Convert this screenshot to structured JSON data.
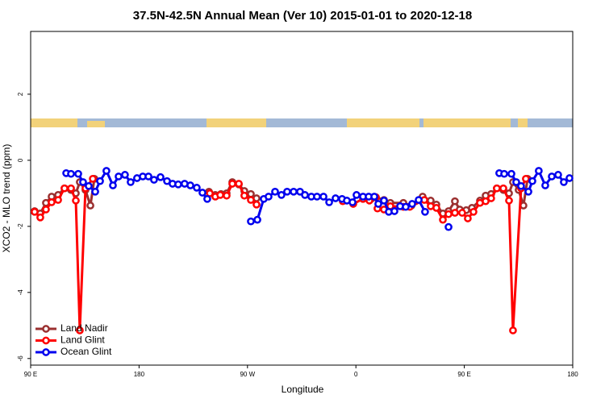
{
  "chart_data": {
    "type": "line",
    "title": "37.5N-42.5N Annual Mean (Ver 10)   2015-01-01 to 2020-12-18",
    "x_label": "Longitude",
    "y_label": "XCO2 - MLO trend (ppm)",
    "xlim": [
      -270,
      180
    ],
    "ylim": [
      -6.2,
      3.9
    ],
    "xticks": [
      {
        "value": -270,
        "label": "90 E"
      },
      {
        "value": -180,
        "label": "180"
      },
      {
        "value": -90,
        "label": "90 W"
      },
      0,
      {
        "value": 90,
        "label": "90 E"
      },
      {
        "value": 180,
        "label": "180"
      }
    ],
    "yticks": [
      -6,
      -4,
      -2,
      0,
      2
    ],
    "legend": "lower left",
    "series": [
      {
        "name": "Land Nadir",
        "color": "#9b3030",
        "x": [
          -266.7,
          -262.0,
          -257.3,
          -252.6,
          -247.2,
          -241.9,
          -236.5,
          -232.5,
          -229.2,
          -224.5,
          -220.4,
          -217.1,
          null,
          -122.0,
          -116.7,
          -112.0,
          -107.3,
          -102.6,
          -97.2,
          -92.6,
          -87.2,
          -82.5,
          null,
          12.6,
          16.6,
          23.3,
          28.6,
          39.4,
          46.1,
          55.4,
          62.1,
          66.8,
          72.2,
          76.9,
          82.2,
          86.2,
          91.6,
          96.3,
          103.0,
          107.7,
          112.3,
          117.0,
          122.4,
          127.1,
          130.4,
          135.1,
          139.1,
          142.5
        ],
        "values": [
          -1.54,
          -1.61,
          -1.29,
          -1.1,
          -1.05,
          -0.85,
          -0.9,
          -1.0,
          -0.66,
          -0.9,
          -1.37,
          -0.56,
          null,
          -0.95,
          -1.05,
          -1.02,
          -1.0,
          -0.66,
          -0.73,
          -0.93,
          -1.02,
          -1.15,
          null,
          -1.17,
          -1.12,
          -1.2,
          -1.29,
          -1.29,
          -1.37,
          -1.1,
          -1.22,
          -1.34,
          -1.61,
          -1.54,
          -1.24,
          -1.49,
          -1.51,
          -1.44,
          -1.22,
          -1.07,
          -1.02,
          -0.85,
          -0.9,
          -1.0,
          -0.66,
          -0.9,
          -1.37,
          -0.56
        ]
      },
      {
        "name": "Land Glint",
        "color": "#ff0000",
        "x": [
          -266.7,
          -262.0,
          -257.3,
          -252.6,
          -247.2,
          -241.9,
          -236.5,
          -232.5,
          -229.2,
          -224.5,
          -218.4,
          null,
          -121.3,
          -116.7,
          -112.6,
          -107.3,
          -102.6,
          -97.2,
          -92.6,
          -87.2,
          -82.5,
          null,
          -10.9,
          -2.2,
          5.9,
          11.2,
          16.6,
          17.9,
          23.3,
          28.6,
          39.4,
          44.7,
          56.8,
          62.1,
          66.8,
          72.2,
          76.9,
          82.2,
          88.2,
          92.9,
          97.6,
          103.0,
          107.7,
          112.3,
          117.0,
          122.4,
          127.1,
          130.4,
          137.1,
          141.1
        ],
        "values": [
          -1.56,
          -1.73,
          -1.49,
          -1.27,
          -1.2,
          -0.85,
          -0.85,
          -1.22,
          -5.15,
          -0.85,
          -0.56,
          null,
          -1.0,
          -1.1,
          -1.05,
          -1.07,
          -0.71,
          -0.71,
          -1.07,
          -1.2,
          -1.34,
          null,
          -1.24,
          -1.32,
          -1.17,
          -1.22,
          -1.12,
          -1.46,
          -1.49,
          -1.39,
          -1.41,
          -1.41,
          -1.2,
          -1.39,
          -1.44,
          -1.8,
          -1.63,
          -1.59,
          -1.59,
          -1.76,
          -1.56,
          -1.29,
          -1.24,
          -1.15,
          -0.85,
          -0.85,
          -1.22,
          -5.15,
          -0.85,
          -0.56
        ]
      },
      {
        "name": "Ocean Glint",
        "color": "#0000ee",
        "x": [
          -240.5,
          -236.5,
          -230.5,
          -226.5,
          -221.8,
          -216.4,
          -212.4,
          -207.1,
          -201.7,
          -197.0,
          -191.7,
          -187.0,
          -181.7,
          -176.9,
          -172.2,
          -167.6,
          -162.2,
          -156.8,
          -152.2,
          -147.5,
          -142.2,
          -137.4,
          -132.1,
          -127.4,
          -123.4,
          null,
          -87.2,
          -81.8,
          -76.5,
          -72.5,
          -67.1,
          -61.8,
          -57.1,
          -51.7,
          -46.4,
          -42.3,
          -37.0,
          -32.3,
          -26.9,
          -22.2,
          -16.9,
          -11.5,
          -7.5,
          -2.8,
          0.5,
          5.9,
          10.6,
          15.3,
          18.6,
          23.3,
          27.3,
          32.0,
          36.7,
          41.4,
          46.7,
          52.1,
          57.4,
          null,
          76.9,
          null,
          119.0,
          123.1,
          129.1,
          133.1,
          137.1,
          143.2,
          146.5,
          151.8,
          157.2,
          162.6,
          167.9,
          172.6,
          177.3
        ],
        "values": [
          -0.39,
          -0.41,
          -0.41,
          -0.66,
          -0.78,
          -0.95,
          -0.63,
          -0.32,
          -0.76,
          -0.49,
          -0.44,
          -0.66,
          -0.54,
          -0.49,
          -0.49,
          -0.59,
          -0.51,
          -0.63,
          -0.71,
          -0.73,
          -0.71,
          -0.76,
          -0.83,
          -0.98,
          -1.17,
          null,
          -1.85,
          -1.8,
          -1.17,
          -1.1,
          -0.95,
          -1.05,
          -0.95,
          -0.95,
          -0.95,
          -1.05,
          -1.1,
          -1.1,
          -1.1,
          -1.27,
          -1.15,
          -1.17,
          -1.22,
          -1.27,
          -1.05,
          -1.1,
          -1.1,
          -1.1,
          -1.32,
          -1.22,
          -1.56,
          -1.54,
          -1.39,
          -1.41,
          -1.32,
          -1.2,
          -1.56,
          null,
          -2.02,
          null,
          -0.39,
          -0.41,
          -0.41,
          -0.66,
          -0.78,
          -0.95,
          -0.63,
          -0.32,
          -0.76,
          -0.49,
          -0.44,
          -0.66,
          -0.54
        ]
      }
    ]
  }
}
